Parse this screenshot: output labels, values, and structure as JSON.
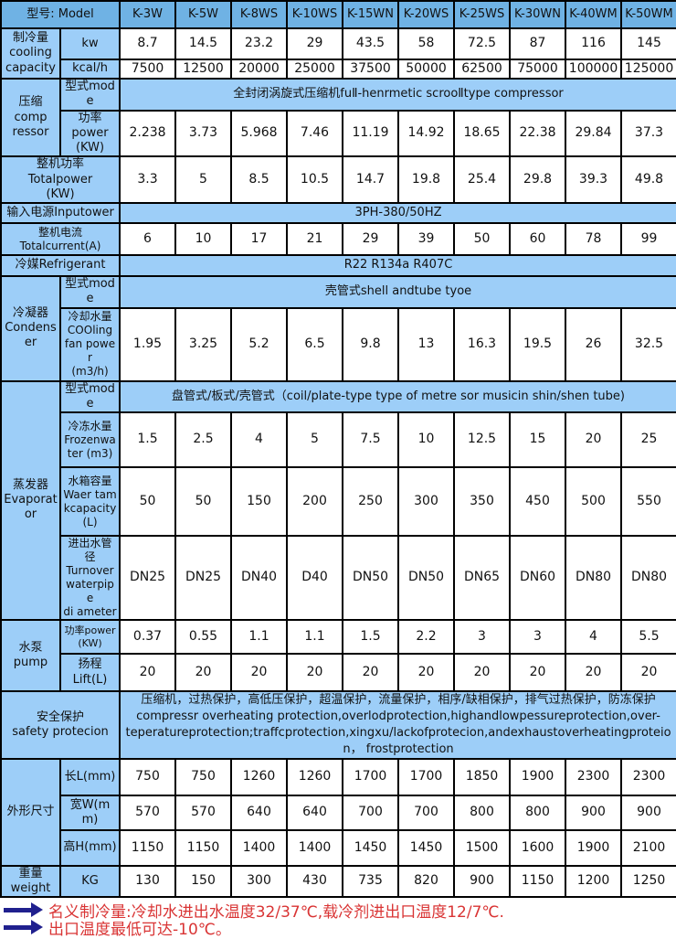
{
  "header": {
    "model_label": "型号: Model",
    "models": [
      "K-3W",
      "K-5W",
      "K-8WS",
      "K-10WS",
      "K-15WN",
      "K-20WS",
      "K-25WS",
      "K-30WN",
      "K-40WM",
      "K-50WM"
    ]
  },
  "cooling": {
    "group": "制冷量\ncooling\ncapacity",
    "kw_label": "kw",
    "kw_values": [
      "8.7",
      "14.5",
      "23.2",
      "29",
      "43.5",
      "58",
      "72.5",
      "87",
      "116",
      "145"
    ],
    "kcal_label": "kcal/h",
    "kcal_values": [
      "7500",
      "12500",
      "20000",
      "25000",
      "37500",
      "50000",
      "62500",
      "75000",
      "100000",
      "125000"
    ]
  },
  "compressor": {
    "group": "压缩\ncomp\nressor",
    "mode_label": "型式mode",
    "mode_value": "全封闭涡旋式压缩机fuⅡ-henrmetic scrooⅡtype compressor",
    "power_label": "功率\npower\n(KW)",
    "power_values": [
      "2.238",
      "3.73",
      "5.968",
      "7.46",
      "11.19",
      "14.92",
      "18.65",
      "22.38",
      "29.84",
      "37.3"
    ]
  },
  "total_power": {
    "label": "整机功率\nTotalpower\n(KW)",
    "values": [
      "3.3",
      "5",
      "8.5",
      "10.5",
      "14.7",
      "19.8",
      "25.4",
      "29.8",
      "39.3",
      "49.8"
    ]
  },
  "input_power": {
    "label": "输入电源Inputower",
    "value": "3PH-380/50HZ"
  },
  "total_current": {
    "label": "整机电流\nTotalcurrent(A)",
    "values": [
      "6",
      "10",
      "17",
      "21",
      "29",
      "39",
      "50",
      "60",
      "78",
      "99"
    ]
  },
  "refrigerant": {
    "label": "冷媒Refrigerant",
    "value": "R22 R134a R407C"
  },
  "condenser": {
    "group": "冷凝器\nCondenser",
    "mode_label": "型式mode",
    "mode_value": "壳管式shell andtube tyoe",
    "water_label": "冷却水量\nCOOling\nfan power\n(m3/h)",
    "water_values": [
      "1.95",
      "3.25",
      "5.2",
      "6.5",
      "9.8",
      "13",
      "16.3",
      "19.5",
      "26",
      "32.5"
    ]
  },
  "evaporator": {
    "group": "蒸发器\nEvaporator",
    "mode_label": "型式mode",
    "mode_value": "盘管式/板式/壳管式（coil/plate-type type of metre sor musicin shin/shen tube)",
    "frozen_label": "冷冻水量\nFrozenwater (m3)",
    "frozen_values": [
      "1.5",
      "2.5",
      "4",
      "5",
      "7.5",
      "10",
      "12.5",
      "15",
      "20",
      "25"
    ],
    "tank_label": "水箱容量\nWaer tamkcapacity(L)",
    "tank_values": [
      "50",
      "50",
      "150",
      "200",
      "250",
      "300",
      "350",
      "450",
      "500",
      "550"
    ],
    "pipe_label": "进出水管径\nTurnover\nwaterpipe\ndi ameter",
    "pipe_values": [
      "DN25",
      "DN25",
      "DN40",
      "D40",
      "DN50",
      "DN50",
      "DN65",
      "DN60",
      "DN80",
      "DN80"
    ]
  },
  "pump": {
    "group": "水泵\npump",
    "power_label": "功率power\n(KW)",
    "power_values": [
      "0.37",
      "0.55",
      "1.1",
      "1.1",
      "1.5",
      "2.2",
      "3",
      "3",
      "4",
      "5.5"
    ],
    "lift_label": "扬程\nLift(L)",
    "lift_values": [
      "20",
      "20",
      "20",
      "20",
      "20",
      "20",
      "20",
      "20",
      "20",
      "20"
    ]
  },
  "safety": {
    "label": "安全保护\nsafety protecion",
    "text": "压缩机，过热保护，高低压保护，超温保护，流量保护，相序/缺相保护，排气过热保护，防冻保护\ncompressr overheating protection,overlodprotection,highandlowpessureprotection,over-\nteperatureprotection;traffcprotection,xingxu/lackofprotecion,andexhaustoverheatingproteio\nn，  frostprotection"
  },
  "dimensions": {
    "group": "外形尺寸",
    "length_label": "长L(mm)",
    "length_values": [
      "750",
      "750",
      "1260",
      "1260",
      "1700",
      "1700",
      "1850",
      "1900",
      "2300",
      "2300"
    ],
    "width_label": "宽W(mm)",
    "width_values": [
      "570",
      "570",
      "640",
      "640",
      "700",
      "700",
      "800",
      "800",
      "900",
      "900"
    ],
    "height_label": "高H(mm)",
    "height_values": [
      "1150",
      "1150",
      "1400",
      "1400",
      "1450",
      "1450",
      "1500",
      "1600",
      "1900",
      "2100"
    ]
  },
  "weight": {
    "group": "重量\nweight",
    "kg_label": "KG",
    "kg_values": [
      "130",
      "150",
      "300",
      "430",
      "735",
      "820",
      "900",
      "1150",
      "1200",
      "1250"
    ]
  },
  "notes": [
    "名义制冷量:冷却水进出水温度32/37℃,载冷剂进出口温度12/7℃.",
    "出口温度最低可达-10℃。"
  ],
  "colors": {
    "header_blue": "#6fb2e4",
    "label_blue": "#9dcef8",
    "border_black": "#000000",
    "note_red": "#d93434",
    "arrow_navy": "#20208e"
  }
}
